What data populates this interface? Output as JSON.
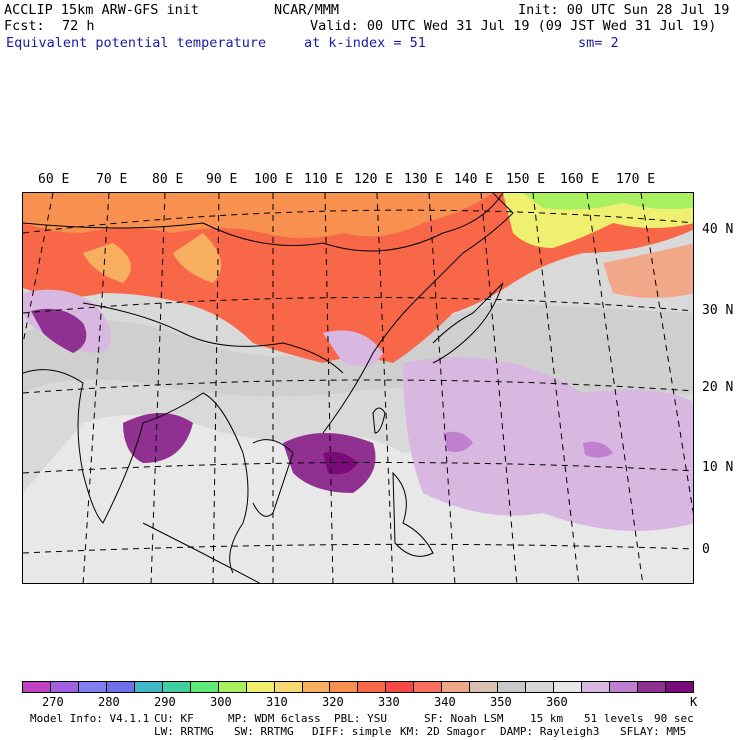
{
  "header": {
    "model": "ACCLIP 15km ARW-GFS init",
    "org": "NCAR/MMM",
    "init": "Init: 00 UTC Sun 28 Jul 19",
    "fcst_label": "Fcst:",
    "fcst_value": "72 h",
    "valid": "Valid: 00 UTC Wed 31 Jul 19 (09 JST Wed 31 Jul 19)",
    "field": "Equivalent potential temperature",
    "level": "at k-index =  51",
    "smooth": "sm= 2"
  },
  "map": {
    "lon_labels": [
      "60 E",
      "70 E",
      "80 E",
      "90 E",
      "100 E",
      "110 E",
      "120 E",
      "130 E",
      "140 E",
      "150 E",
      "160 E",
      "170 E"
    ],
    "lat_labels": [
      "40 N",
      "30 N",
      "20 N",
      "10 N",
      "0"
    ]
  },
  "colorbar": {
    "colors": [
      "#c040c0",
      "#a060e0",
      "#8080f0",
      "#7070e8",
      "#40b8c8",
      "#40d0a0",
      "#60e878",
      "#a8f060",
      "#f0f070",
      "#f8d870",
      "#f8b060",
      "#f89050",
      "#f86848",
      "#f84848",
      "#f87060",
      "#f0a888",
      "#d8c0b0",
      "#c8c8c8",
      "#d8d8d8",
      "#e8e8e8",
      "#d8b8e0",
      "#c080d0",
      "#903090",
      "#7a0a7a"
    ],
    "ticks": [
      "270",
      "280",
      "290",
      "300",
      "310",
      "320",
      "330",
      "340",
      "350",
      "360"
    ],
    "unit": "K"
  },
  "footer": {
    "line1": [
      "Model Info: V4.1.1",
      "CU: KF",
      "MP: WDM 6class",
      "PBL: YSU",
      "SF: Noah LSM",
      "15 km",
      "51 levels",
      "90 sec"
    ],
    "line2": [
      "LW: RRTMG",
      "SW: RRTMG",
      "DIFF: simple",
      "KM: 2D Smagor",
      "DAMP: Rayleigh3",
      "SFLAY: MM5"
    ]
  }
}
